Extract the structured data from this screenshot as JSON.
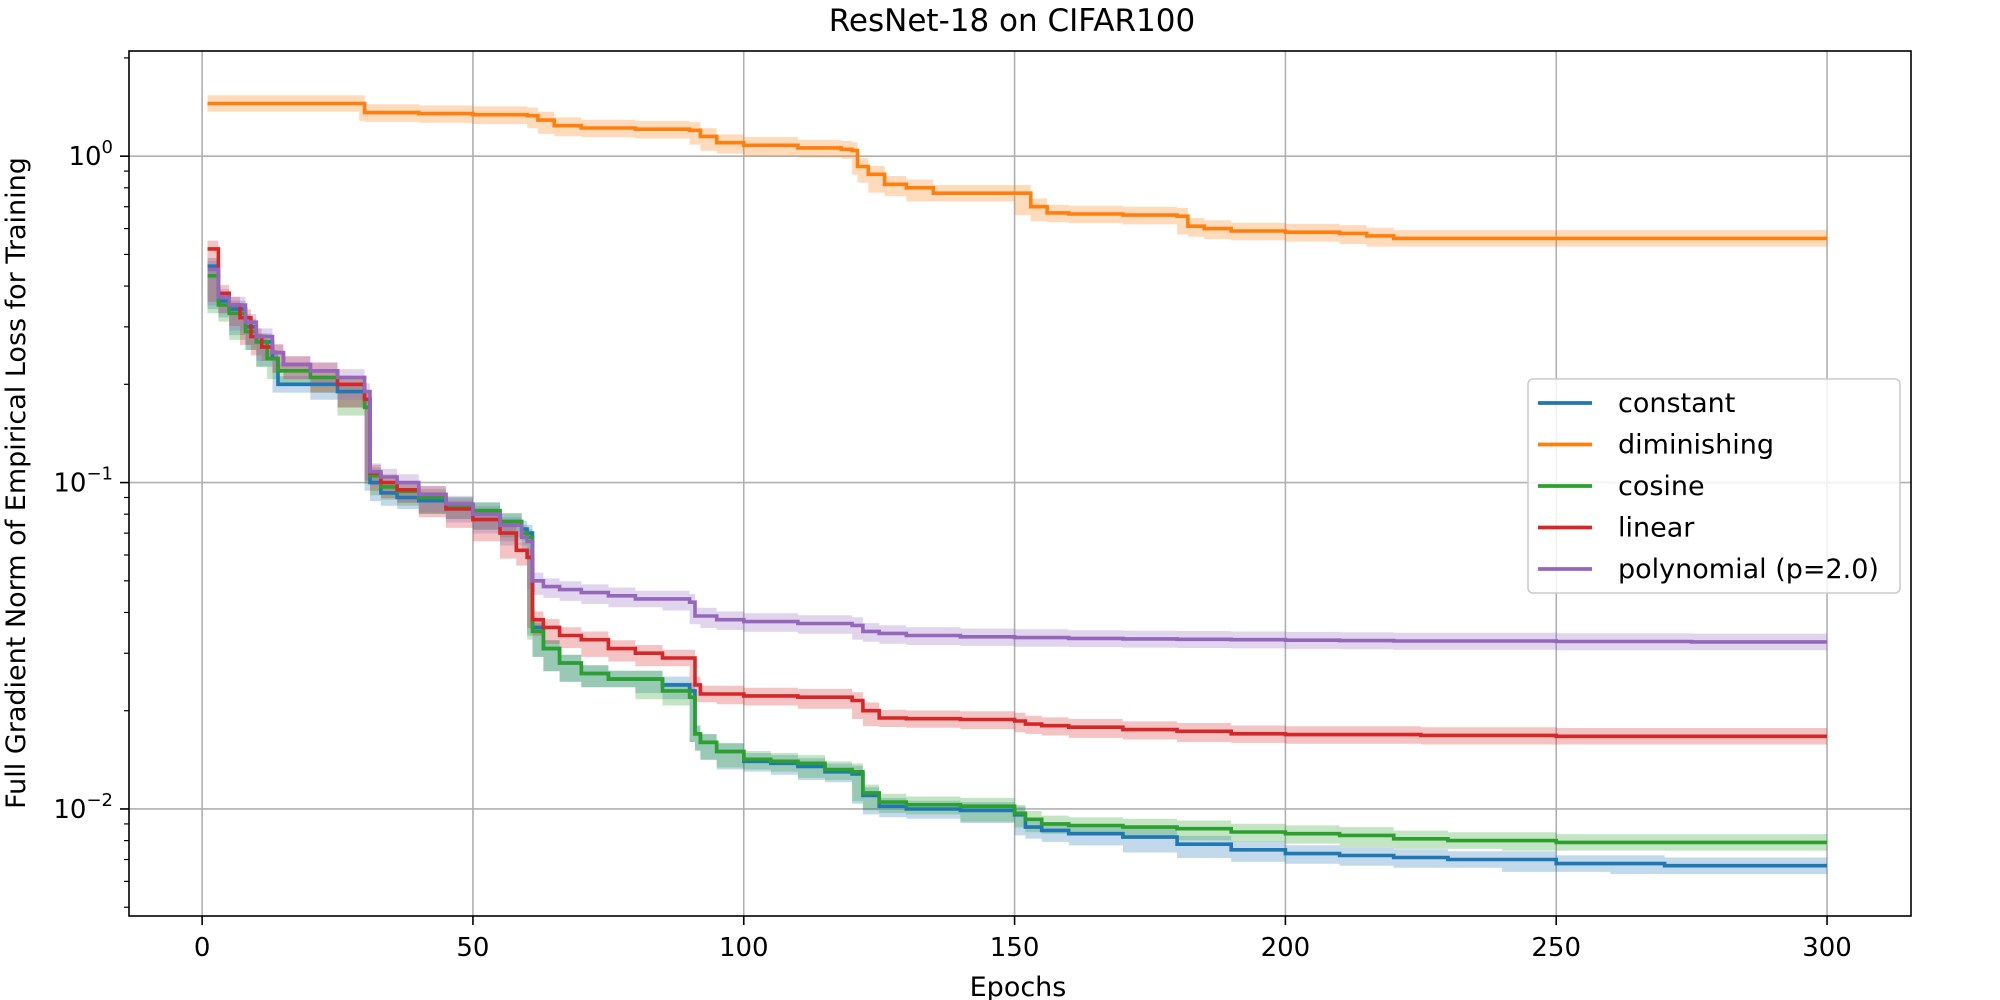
{
  "chart_data": {
    "type": "line",
    "title": "ResNet-18 on CIFAR100",
    "xlabel": "Epochs",
    "ylabel": "Full Gradient Norm of Empirical Loss for Training",
    "xlim": [
      -13.5,
      315.5
    ],
    "ylim": [
      0.0047,
      2.1
    ],
    "yscale": "log",
    "grid": true,
    "legend_position": "center-right",
    "x_ticks": [
      {
        "value": 0,
        "label": "0"
      },
      {
        "value": 50,
        "label": "50"
      },
      {
        "value": 100,
        "label": "100"
      },
      {
        "value": 150,
        "label": "150"
      },
      {
        "value": 200,
        "label": "200"
      },
      {
        "value": 250,
        "label": "250"
      },
      {
        "value": 300,
        "label": "300"
      }
    ],
    "y_ticks": [
      {
        "value": 1,
        "base": "10",
        "exp": "0"
      },
      {
        "value": 0.1,
        "base": "10",
        "exp": "−1"
      },
      {
        "value": 0.01,
        "base": "10",
        "exp": "−2"
      }
    ],
    "series": [
      {
        "name": "constant",
        "color": "#1f77b4",
        "points": [
          [
            1,
            0.46
          ],
          [
            3,
            0.36
          ],
          [
            5,
            0.34
          ],
          [
            8,
            0.3
          ],
          [
            10,
            0.27
          ],
          [
            13,
            0.24
          ],
          [
            14,
            0.2
          ],
          [
            20,
            0.2
          ],
          [
            25,
            0.19
          ],
          [
            30,
            0.18
          ],
          [
            31,
            0.1
          ],
          [
            33,
            0.093
          ],
          [
            36,
            0.09
          ],
          [
            40,
            0.088
          ],
          [
            45,
            0.085
          ],
          [
            50,
            0.082
          ],
          [
            55,
            0.076
          ],
          [
            59,
            0.072
          ],
          [
            60,
            0.07
          ],
          [
            61,
            0.036
          ],
          [
            63,
            0.031
          ],
          [
            66,
            0.028
          ],
          [
            70,
            0.026
          ],
          [
            75,
            0.025
          ],
          [
            80,
            0.025
          ],
          [
            85,
            0.024
          ],
          [
            90,
            0.023
          ],
          [
            91,
            0.017
          ],
          [
            92,
            0.016
          ],
          [
            95,
            0.015
          ],
          [
            100,
            0.014
          ],
          [
            105,
            0.0138
          ],
          [
            110,
            0.0135
          ],
          [
            115,
            0.013
          ],
          [
            120,
            0.0128
          ],
          [
            122,
            0.011
          ],
          [
            125,
            0.0102
          ],
          [
            130,
            0.01
          ],
          [
            140,
            0.0099
          ],
          [
            150,
            0.0096
          ],
          [
            152,
            0.0088
          ],
          [
            155,
            0.0086
          ],
          [
            160,
            0.0084
          ],
          [
            170,
            0.0082
          ],
          [
            180,
            0.0078
          ],
          [
            190,
            0.0075
          ],
          [
            200,
            0.0073
          ],
          [
            210,
            0.0072
          ],
          [
            220,
            0.0071
          ],
          [
            230,
            0.007
          ],
          [
            240,
            0.007
          ],
          [
            250,
            0.0068
          ],
          [
            260,
            0.0068
          ],
          [
            270,
            0.0067
          ],
          [
            280,
            0.0067
          ],
          [
            290,
            0.0067
          ],
          [
            300,
            0.0067
          ]
        ]
      },
      {
        "name": "diminishing",
        "color": "#ff7f0e",
        "points": [
          [
            1,
            1.45
          ],
          [
            10,
            1.45
          ],
          [
            20,
            1.45
          ],
          [
            29,
            1.45
          ],
          [
            30,
            1.36
          ],
          [
            40,
            1.35
          ],
          [
            50,
            1.34
          ],
          [
            60,
            1.33
          ],
          [
            62,
            1.29
          ],
          [
            65,
            1.24
          ],
          [
            70,
            1.22
          ],
          [
            80,
            1.21
          ],
          [
            90,
            1.2
          ],
          [
            92,
            1.15
          ],
          [
            95,
            1.1
          ],
          [
            100,
            1.08
          ],
          [
            110,
            1.06
          ],
          [
            118,
            1.05
          ],
          [
            120,
            1.04
          ],
          [
            121,
            0.93
          ],
          [
            123,
            0.88
          ],
          [
            126,
            0.82
          ],
          [
            130,
            0.8
          ],
          [
            135,
            0.77
          ],
          [
            140,
            0.77
          ],
          [
            145,
            0.77
          ],
          [
            150,
            0.77
          ],
          [
            153,
            0.7
          ],
          [
            156,
            0.67
          ],
          [
            160,
            0.665
          ],
          [
            170,
            0.66
          ],
          [
            180,
            0.655
          ],
          [
            182,
            0.61
          ],
          [
            185,
            0.6
          ],
          [
            190,
            0.59
          ],
          [
            200,
            0.585
          ],
          [
            210,
            0.58
          ],
          [
            215,
            0.57
          ],
          [
            220,
            0.56
          ],
          [
            230,
            0.56
          ],
          [
            250,
            0.56
          ],
          [
            275,
            0.56
          ],
          [
            300,
            0.56
          ]
        ]
      },
      {
        "name": "cosine",
        "color": "#2ca02c",
        "points": [
          [
            1,
            0.43
          ],
          [
            3,
            0.35
          ],
          [
            5,
            0.33
          ],
          [
            8,
            0.29
          ],
          [
            10,
            0.27
          ],
          [
            12,
            0.24
          ],
          [
            14,
            0.22
          ],
          [
            20,
            0.21
          ],
          [
            25,
            0.2
          ],
          [
            30,
            0.17
          ],
          [
            31,
            0.105
          ],
          [
            33,
            0.097
          ],
          [
            36,
            0.094
          ],
          [
            40,
            0.09
          ],
          [
            45,
            0.085
          ],
          [
            50,
            0.082
          ],
          [
            55,
            0.076
          ],
          [
            59,
            0.07
          ],
          [
            60,
            0.068
          ],
          [
            61,
            0.035
          ],
          [
            63,
            0.031
          ],
          [
            66,
            0.028
          ],
          [
            70,
            0.026
          ],
          [
            75,
            0.025
          ],
          [
            80,
            0.025
          ],
          [
            85,
            0.023
          ],
          [
            90,
            0.022
          ],
          [
            91,
            0.017
          ],
          [
            92,
            0.016
          ],
          [
            95,
            0.015
          ],
          [
            100,
            0.0142
          ],
          [
            105,
            0.014
          ],
          [
            110,
            0.0138
          ],
          [
            115,
            0.0132
          ],
          [
            120,
            0.013
          ],
          [
            122,
            0.0112
          ],
          [
            125,
            0.0105
          ],
          [
            130,
            0.0103
          ],
          [
            140,
            0.0102
          ],
          [
            150,
            0.0097
          ],
          [
            152,
            0.0093
          ],
          [
            155,
            0.009
          ],
          [
            160,
            0.0089
          ],
          [
            170,
            0.0088
          ],
          [
            180,
            0.0087
          ],
          [
            190,
            0.0085
          ],
          [
            200,
            0.0084
          ],
          [
            210,
            0.0083
          ],
          [
            220,
            0.0081
          ],
          [
            230,
            0.008
          ],
          [
            240,
            0.008
          ],
          [
            250,
            0.0079
          ],
          [
            260,
            0.0079
          ],
          [
            270,
            0.0079
          ],
          [
            280,
            0.0079
          ],
          [
            290,
            0.0079
          ],
          [
            300,
            0.0079
          ]
        ]
      },
      {
        "name": "linear",
        "color": "#d62728",
        "points": [
          [
            1,
            0.52
          ],
          [
            3,
            0.38
          ],
          [
            5,
            0.35
          ],
          [
            7,
            0.32
          ],
          [
            9,
            0.28
          ],
          [
            11,
            0.26
          ],
          [
            13,
            0.25
          ],
          [
            15,
            0.23
          ],
          [
            20,
            0.22
          ],
          [
            25,
            0.2
          ],
          [
            30,
            0.18
          ],
          [
            31,
            0.107
          ],
          [
            33,
            0.1
          ],
          [
            36,
            0.095
          ],
          [
            40,
            0.092
          ],
          [
            45,
            0.083
          ],
          [
            50,
            0.077
          ],
          [
            55,
            0.07
          ],
          [
            58,
            0.062
          ],
          [
            60,
            0.059
          ],
          [
            61,
            0.038
          ],
          [
            63,
            0.036
          ],
          [
            66,
            0.034
          ],
          [
            70,
            0.033
          ],
          [
            75,
            0.031
          ],
          [
            80,
            0.03
          ],
          [
            85,
            0.029
          ],
          [
            90,
            0.029
          ],
          [
            91,
            0.024
          ],
          [
            92,
            0.0225
          ],
          [
            95,
            0.0225
          ],
          [
            100,
            0.0222
          ],
          [
            110,
            0.022
          ],
          [
            120,
            0.0215
          ],
          [
            122,
            0.02
          ],
          [
            125,
            0.019
          ],
          [
            130,
            0.0189
          ],
          [
            140,
            0.0188
          ],
          [
            150,
            0.0186
          ],
          [
            152,
            0.0182
          ],
          [
            155,
            0.018
          ],
          [
            160,
            0.0178
          ],
          [
            170,
            0.0175
          ],
          [
            180,
            0.0173
          ],
          [
            190,
            0.017
          ],
          [
            200,
            0.0169
          ],
          [
            225,
            0.0168
          ],
          [
            250,
            0.0167
          ],
          [
            275,
            0.0167
          ],
          [
            300,
            0.0167
          ]
        ]
      },
      {
        "name": "polynomial (p=2.0)",
        "color": "#9467bd",
        "points": [
          [
            1,
            0.45
          ],
          [
            3,
            0.37
          ],
          [
            5,
            0.35
          ],
          [
            8,
            0.31
          ],
          [
            10,
            0.28
          ],
          [
            13,
            0.25
          ],
          [
            15,
            0.23
          ],
          [
            20,
            0.22
          ],
          [
            25,
            0.21
          ],
          [
            30,
            0.19
          ],
          [
            31,
            0.108
          ],
          [
            33,
            0.104
          ],
          [
            36,
            0.1
          ],
          [
            40,
            0.092
          ],
          [
            45,
            0.086
          ],
          [
            50,
            0.08
          ],
          [
            55,
            0.074
          ],
          [
            59,
            0.068
          ],
          [
            60,
            0.066
          ],
          [
            61,
            0.05
          ],
          [
            63,
            0.048
          ],
          [
            66,
            0.047
          ],
          [
            70,
            0.046
          ],
          [
            75,
            0.045
          ],
          [
            80,
            0.044
          ],
          [
            85,
            0.044
          ],
          [
            90,
            0.043
          ],
          [
            91,
            0.039
          ],
          [
            92,
            0.039
          ],
          [
            95,
            0.038
          ],
          [
            100,
            0.0375
          ],
          [
            110,
            0.037
          ],
          [
            120,
            0.0365
          ],
          [
            122,
            0.035
          ],
          [
            125,
            0.0345
          ],
          [
            130,
            0.034
          ],
          [
            140,
            0.0337
          ],
          [
            150,
            0.0335
          ],
          [
            160,
            0.0333
          ],
          [
            170,
            0.0332
          ],
          [
            180,
            0.0331
          ],
          [
            190,
            0.033
          ],
          [
            200,
            0.0329
          ],
          [
            210,
            0.0328
          ],
          [
            220,
            0.0327
          ],
          [
            250,
            0.0326
          ],
          [
            275,
            0.0325
          ],
          [
            300,
            0.0325
          ]
        ]
      }
    ]
  }
}
